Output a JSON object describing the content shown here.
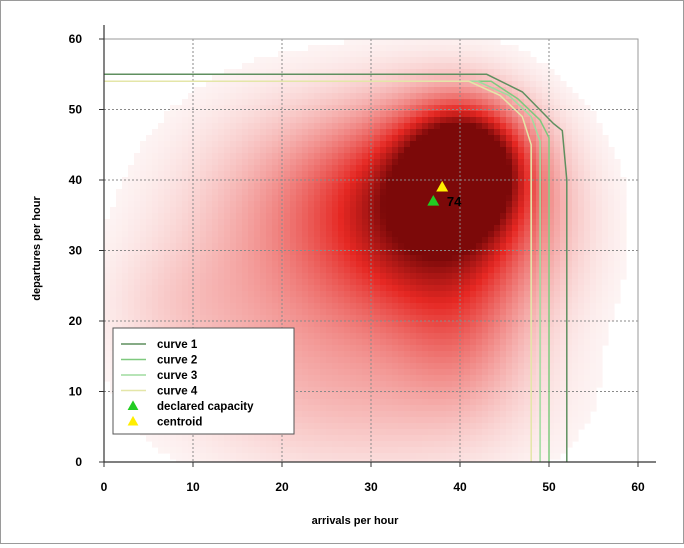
{
  "chart_data": {
    "type": "scatter",
    "title": "",
    "xlabel": "arrivals per hour",
    "ylabel": "departures per hour",
    "xlim": [
      0,
      60
    ],
    "ylim": [
      0,
      60
    ],
    "xticks": [
      0,
      10,
      20,
      30,
      40,
      50,
      60
    ],
    "yticks": [
      0,
      10,
      20,
      30,
      40,
      50,
      60
    ],
    "grid": true,
    "legend_position": "bottom-left",
    "density_heatmap": {
      "colormap": "white-to-dark-red",
      "peak": [
        40.5,
        42
      ],
      "blobs": [
        {
          "x": 40.5,
          "y": 42,
          "sx": 4.2,
          "sy": 5.5,
          "w": 1.0
        },
        {
          "x": 39,
          "y": 38,
          "sx": 7,
          "sy": 9,
          "w": 0.55
        },
        {
          "x": 37,
          "y": 30,
          "sx": 9,
          "sy": 9,
          "w": 0.35
        },
        {
          "x": 32,
          "y": 40,
          "sx": 10,
          "sy": 8,
          "w": 0.3
        },
        {
          "x": 28,
          "y": 26,
          "sx": 12,
          "sy": 12,
          "w": 0.2
        },
        {
          "x": 40,
          "y": 18,
          "sx": 5,
          "sy": 8,
          "w": 0.2
        },
        {
          "x": 20,
          "y": 30,
          "sx": 10,
          "sy": 14,
          "w": 0.14
        },
        {
          "x": 30,
          "y": 8,
          "sx": 14,
          "sy": 8,
          "w": 0.14
        },
        {
          "x": 8,
          "y": 22,
          "sx": 6,
          "sy": 6,
          "w": 0.08
        }
      ]
    },
    "series": [
      {
        "name": "curve 1",
        "type": "line",
        "color": "#5f8f5f",
        "x": [
          0,
          43,
          47,
          50.5,
          51.5,
          52,
          52
        ],
        "y": [
          55,
          55,
          52.5,
          48,
          47,
          40,
          0
        ]
      },
      {
        "name": "curve 2",
        "type": "line",
        "color": "#7fc97f",
        "x": [
          0,
          43.5,
          46.5,
          49,
          50,
          50,
          50
        ],
        "y": [
          54,
          54,
          51.5,
          48.5,
          46,
          40,
          0
        ]
      },
      {
        "name": "curve 3",
        "type": "line",
        "color": "#9fdc9f",
        "x": [
          0,
          42,
          45.5,
          48,
          49,
          49,
          49
        ],
        "y": [
          54,
          54,
          52,
          49,
          45.5,
          40,
          0
        ]
      },
      {
        "name": "curve 4",
        "type": "line",
        "color": "#e4e6a8",
        "x": [
          0,
          41,
          44.5,
          47,
          48,
          48,
          48
        ],
        "y": [
          54,
          54,
          52,
          49,
          45,
          40,
          0
        ]
      },
      {
        "name": "declared capacity",
        "type": "marker",
        "marker": "triangle",
        "color": "#22cc22",
        "points": [
          {
            "x": 37,
            "y": 37
          }
        ]
      },
      {
        "name": "centroid",
        "type": "marker",
        "marker": "triangle",
        "color": "#ffee00",
        "points": [
          {
            "x": 38,
            "y": 39
          }
        ]
      }
    ],
    "annotations": [
      {
        "text": "74",
        "x": 38.3,
        "y": 37
      }
    ]
  }
}
